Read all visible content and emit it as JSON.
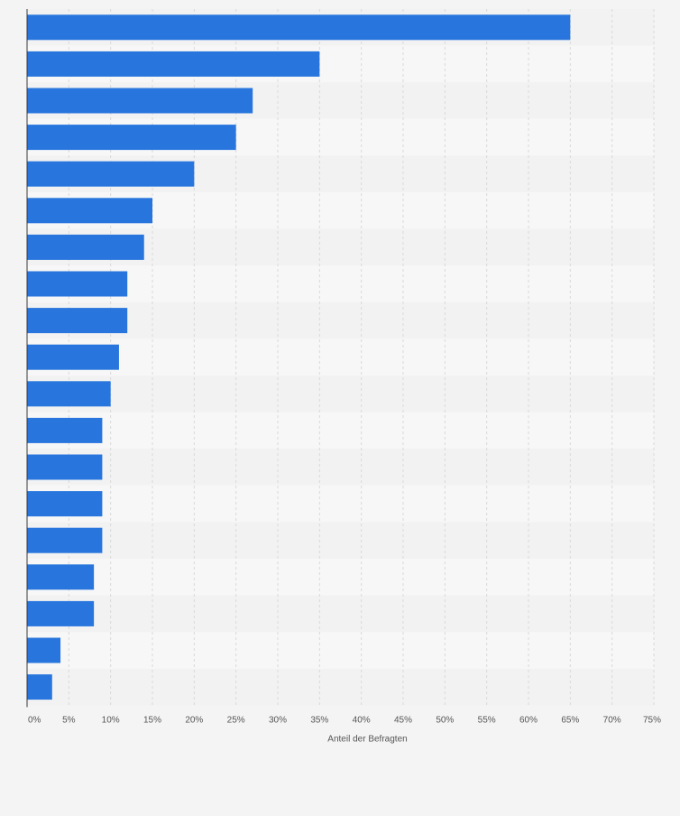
{
  "chart_data": {
    "type": "bar",
    "orientation": "horizontal",
    "categories": [
      "",
      "",
      "",
      "",
      "",
      "",
      "",
      "",
      "",
      "",
      "",
      "",
      "",
      "",
      "",
      "",
      "",
      "",
      ""
    ],
    "values": [
      65,
      35,
      27,
      25,
      20,
      15,
      14,
      12,
      12,
      11,
      10,
      9,
      9,
      9,
      9,
      8,
      8,
      4,
      3
    ],
    "x_ticks": [
      "0%",
      "5%",
      "10%",
      "15%",
      "20%",
      "25%",
      "30%",
      "35%",
      "40%",
      "45%",
      "50%",
      "55%",
      "60%",
      "65%",
      "70%",
      "75%"
    ],
    "xlim": [
      0,
      75
    ],
    "xlabel": "Anteil der Befragten",
    "grid": true,
    "colors": {
      "bar": "#2876dd",
      "band_light": "#f7f7f7",
      "band_dark": "#f2f2f2",
      "grid": "#d9d9d9",
      "axis": "#3a3a3a",
      "tick_label": "#555555",
      "page": "#f4f4f4"
    }
  }
}
